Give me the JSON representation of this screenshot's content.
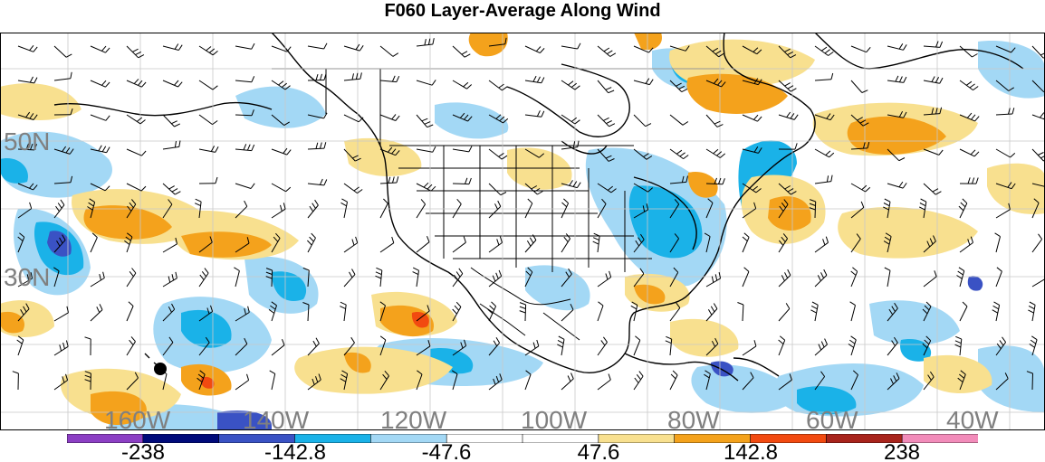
{
  "title": "F060 Layer-Average Along Wind",
  "lat_labels": [
    "50N",
    "30N"
  ],
  "lon_labels": [
    "160W",
    "140W",
    "120W",
    "100W",
    "80W",
    "60W",
    "40W"
  ],
  "colorbar": {
    "labels": [
      "-238",
      "-142.8",
      "-47.6",
      "47.6",
      "142.8",
      "238"
    ],
    "colors": [
      "#8c3fc4",
      "#000a7a",
      "#3a52c4",
      "#1ab2e8",
      "#a3d8f5",
      "#ffffff",
      "#ffffff",
      "#f8e08f",
      "#f4a21c",
      "#f24a10",
      "#a8241c",
      "#f28cba"
    ]
  },
  "palette": {
    "light_blue": "#a3d8f5",
    "medium_blue": "#1ab2e8",
    "dark_blue": "#3a52c4",
    "purple": "#6a3fb0",
    "light_yellow": "#f8e08f",
    "orange": "#f4a21c",
    "red_orange": "#f24a10"
  }
}
